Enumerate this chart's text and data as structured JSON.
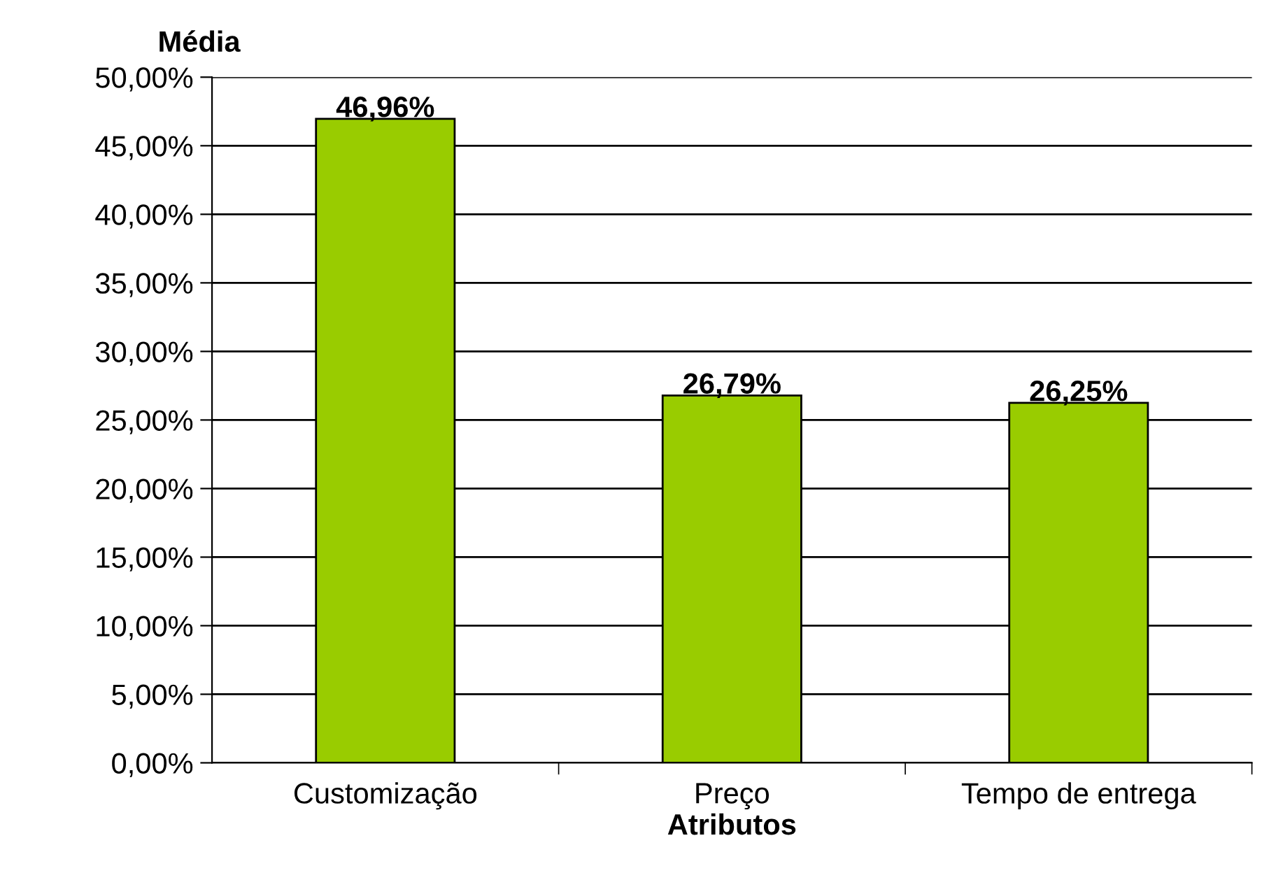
{
  "chart_data": {
    "type": "bar",
    "ylabel": "Média",
    "xlabel": "Atributos",
    "categories": [
      "Customização",
      "Preço",
      "Tempo de entrega"
    ],
    "values": [
      46.96,
      26.79,
      26.25
    ],
    "value_labels": [
      "46,96%",
      "26,79%",
      "26,25%"
    ],
    "color": "#99cc00",
    "ylim": [
      0,
      50
    ],
    "yticks": [
      {
        "value": 0,
        "label": "0,00%"
      },
      {
        "value": 5,
        "label": "5,00%"
      },
      {
        "value": 10,
        "label": "10,00%"
      },
      {
        "value": 15,
        "label": "15,00%"
      },
      {
        "value": 20,
        "label": "20,00%"
      },
      {
        "value": 25,
        "label": "25,00%"
      },
      {
        "value": 30,
        "label": "30,00%"
      },
      {
        "value": 35,
        "label": "35,00%"
      },
      {
        "value": 40,
        "label": "40,00%"
      },
      {
        "value": 45,
        "label": "45,00%"
      },
      {
        "value": 50,
        "label": "50,00%"
      }
    ],
    "grid": "y",
    "legend": false
  }
}
